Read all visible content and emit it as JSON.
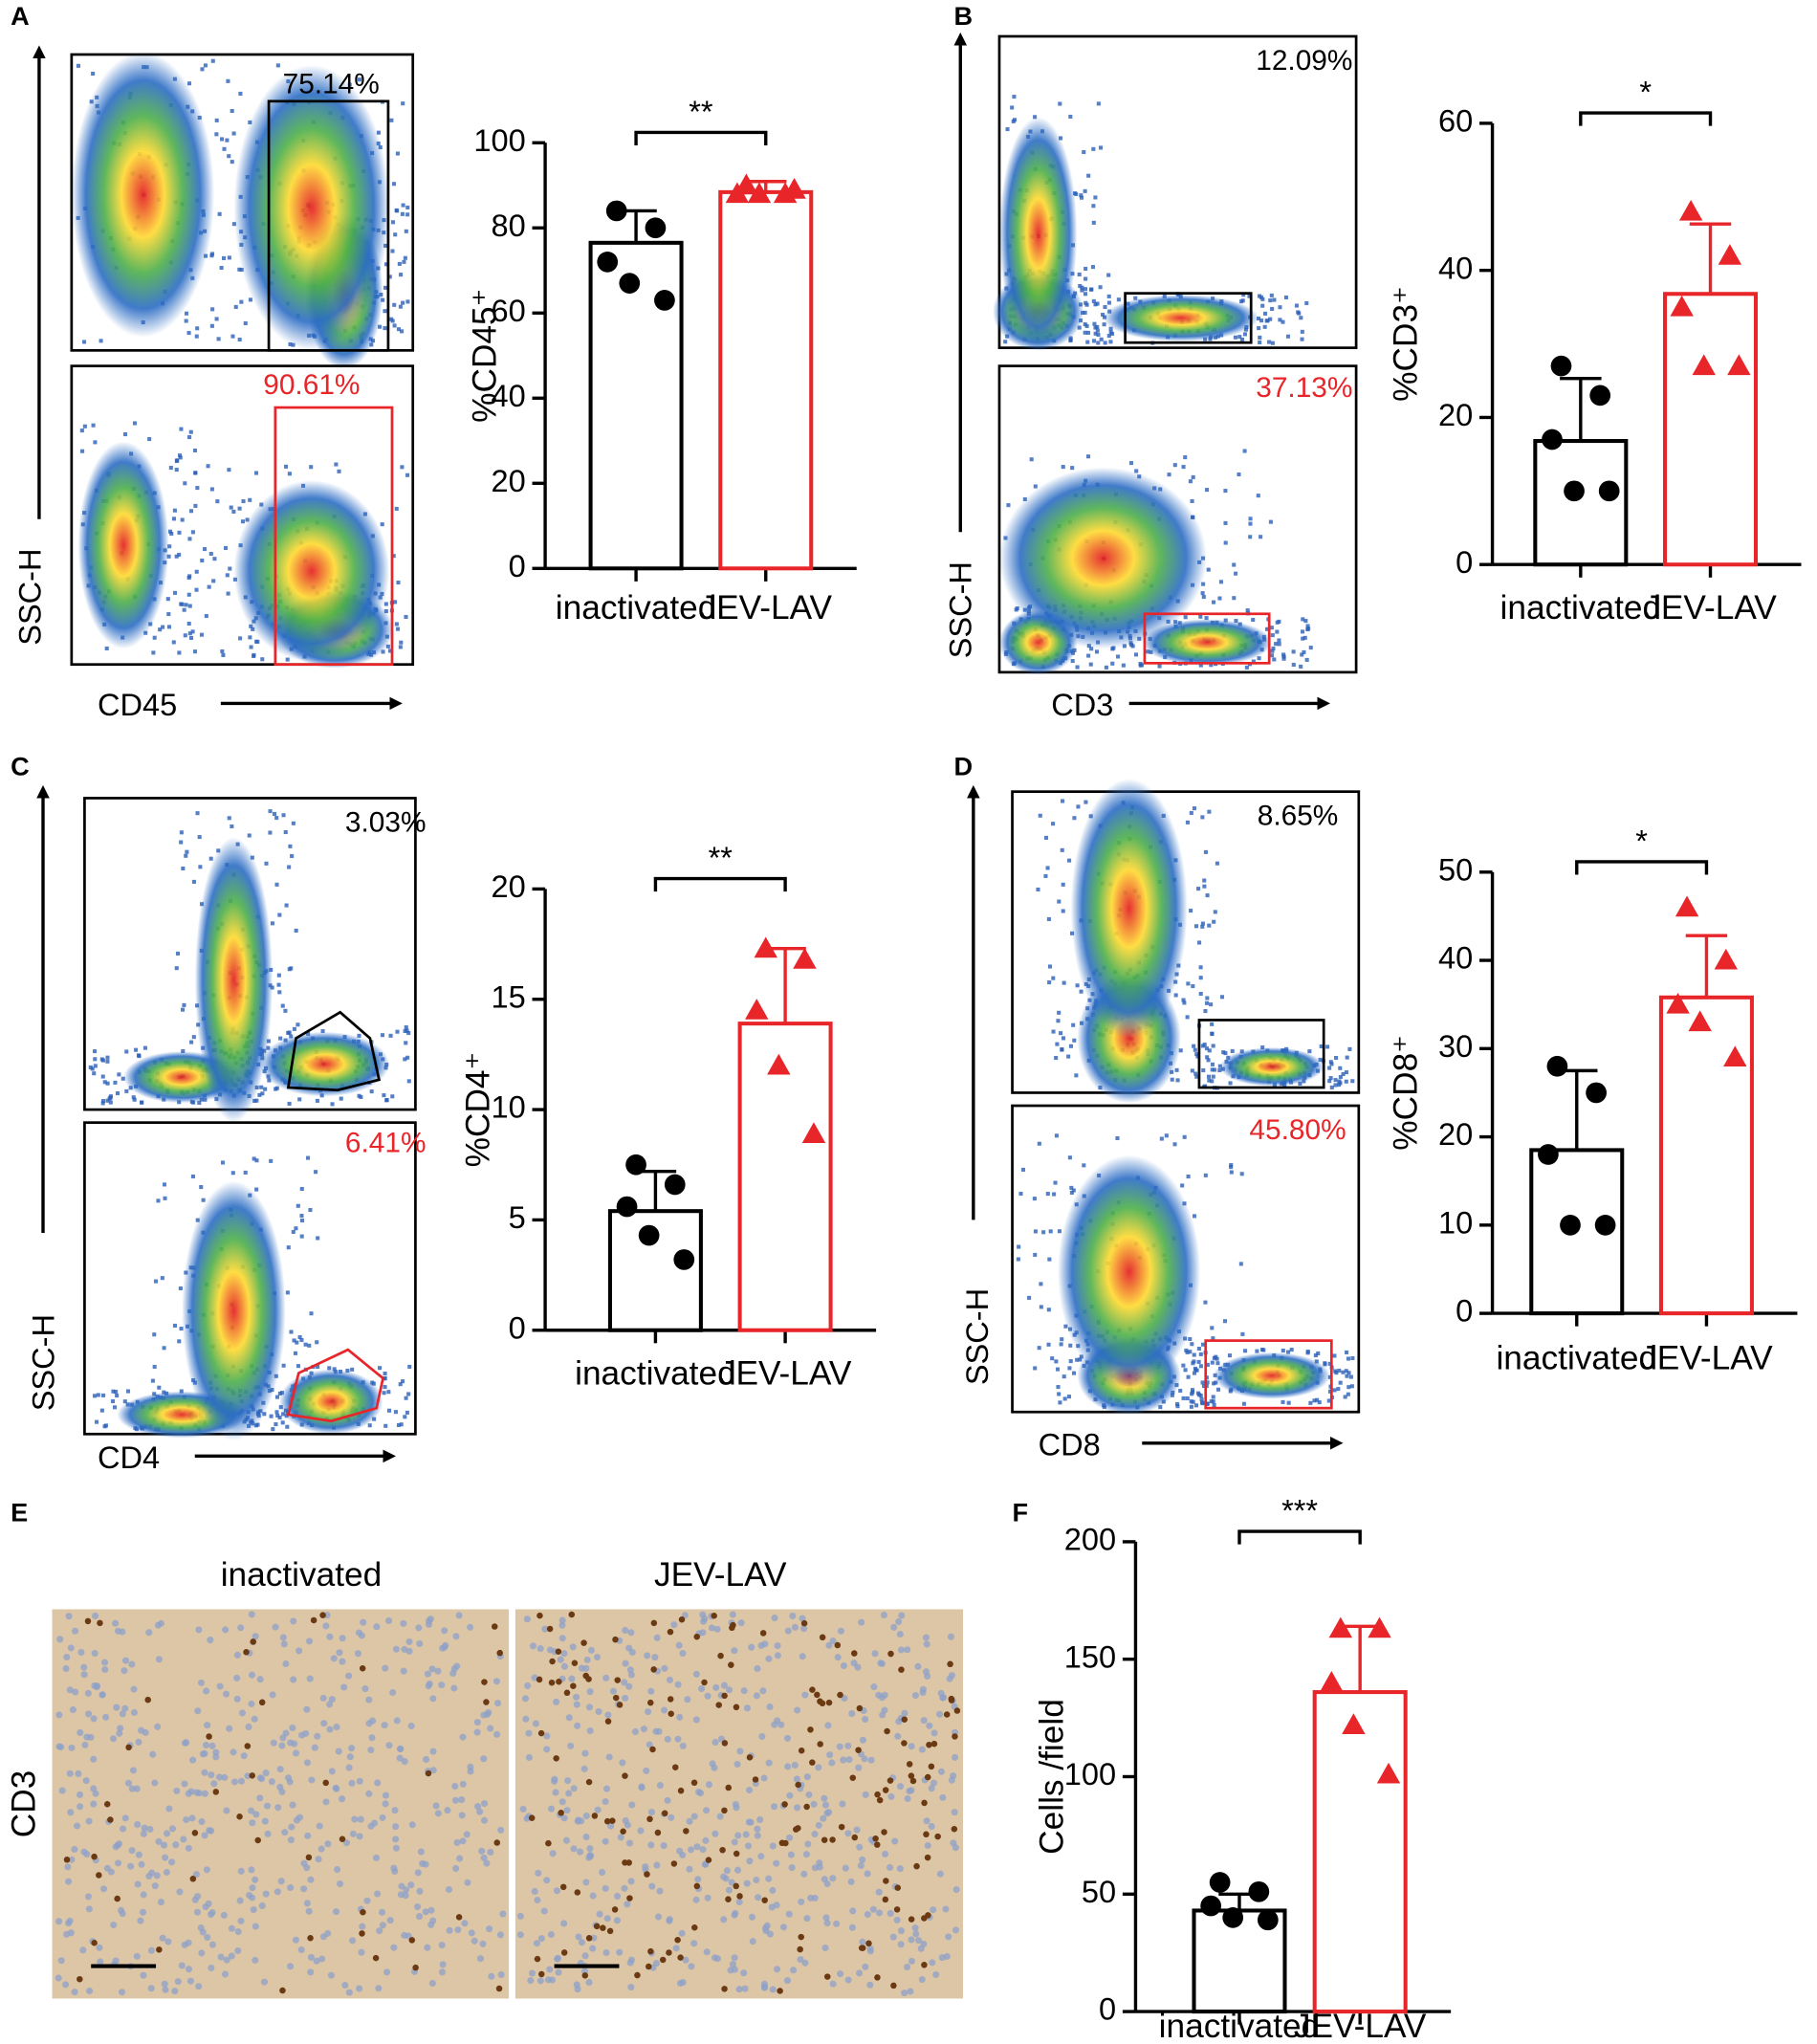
{
  "figure": {
    "panel_letters": [
      "A",
      "B",
      "C",
      "D",
      "E",
      "F"
    ],
    "flow": [
      {
        "x_label": "CD45",
        "y_label": "SSC-H",
        "gate_labels": [
          "75.14%",
          "90.61%"
        ]
      },
      {
        "x_label": "CD3",
        "y_label": "SSC-H",
        "gate_labels": [
          "12.09%",
          "37.13%"
        ]
      },
      {
        "x_label": "CD4",
        "y_label": "SSC-H",
        "gate_labels": [
          "3.03%",
          "6.41%"
        ]
      },
      {
        "x_label": "CD8",
        "y_label": "SSC-H",
        "gate_labels": [
          "8.65%",
          "45.80%"
        ]
      }
    ],
    "histology": {
      "columns": [
        "inactivated",
        "JEV-LAV"
      ],
      "row_label": "CD3"
    }
  },
  "chart_data": [
    {
      "type": "bar",
      "ylabel": "%CD45⁺",
      "categories": [
        "inactivated",
        "JEV-LAV"
      ],
      "values": [
        76.5,
        88.4
      ],
      "errors": [
        7.5,
        2.5
      ],
      "colors": [
        "#000000",
        "#e8262a"
      ],
      "markers": [
        "circle",
        "triangle"
      ],
      "points": [
        [
          84,
          80,
          72,
          67,
          63
        ],
        [
          90,
          88,
          88,
          88,
          89
        ]
      ],
      "significance": "**",
      "ylim": [
        0,
        100
      ],
      "yticks": [
        0,
        20,
        40,
        60,
        80,
        100
      ]
    },
    {
      "type": "bar",
      "ylabel": "%CD3⁺",
      "categories": [
        "inactivated",
        "JEV-LAV"
      ],
      "values": [
        16.8,
        36.8
      ],
      "errors": [
        8.5,
        9.5
      ],
      "colors": [
        "#000000",
        "#e8262a"
      ],
      "markers": [
        "circle",
        "triangle"
      ],
      "points": [
        [
          27,
          23,
          17,
          10,
          10
        ],
        [
          48,
          42,
          35,
          27,
          27
        ]
      ],
      "significance": "*",
      "ylim": [
        0,
        60
      ],
      "yticks": [
        0,
        20,
        40,
        60
      ]
    },
    {
      "type": "bar",
      "ylabel": "%CD4⁺",
      "categories": [
        "inactivated",
        "JEV-LAV"
      ],
      "values": [
        5.4,
        13.9
      ],
      "errors": [
        1.8,
        3.4
      ],
      "colors": [
        "#000000",
        "#e8262a"
      ],
      "markers": [
        "circle",
        "triangle"
      ],
      "points": [
        [
          7.5,
          6.6,
          5.6,
          4.3,
          3.2
        ],
        [
          17.3,
          16.8,
          14.5,
          12,
          8.9
        ]
      ],
      "significance": "**",
      "ylim": [
        0,
        20
      ],
      "yticks": [
        0,
        5,
        10,
        15,
        20
      ]
    },
    {
      "type": "bar",
      "ylabel": "%CD8⁺",
      "categories": [
        "inactivated",
        "JEV-LAV"
      ],
      "values": [
        18.5,
        35.8
      ],
      "errors": [
        9,
        7
      ],
      "colors": [
        "#000000",
        "#e8262a"
      ],
      "markers": [
        "circle",
        "triangle"
      ],
      "points": [
        [
          28,
          25,
          18,
          10,
          10
        ],
        [
          46,
          40,
          35,
          33,
          29
        ]
      ],
      "significance": "*",
      "ylim": [
        0,
        50
      ],
      "yticks": [
        0,
        10,
        20,
        30,
        40,
        50
      ]
    },
    {
      "type": "bar",
      "ylabel": "Cells /field",
      "categories": [
        "inactivated",
        "JEV-LAV"
      ],
      "values": [
        43,
        136
      ],
      "errors": [
        7,
        28
      ],
      "colors": [
        "#000000",
        "#e8262a"
      ],
      "markers": [
        "circle",
        "triangle"
      ],
      "points": [
        [
          55,
          51,
          45,
          40,
          39
        ],
        [
          163,
          163,
          140,
          122,
          101
        ]
      ],
      "significance": "***",
      "ylim": [
        0,
        200
      ],
      "yticks": [
        0,
        50,
        100,
        150,
        200
      ]
    }
  ]
}
